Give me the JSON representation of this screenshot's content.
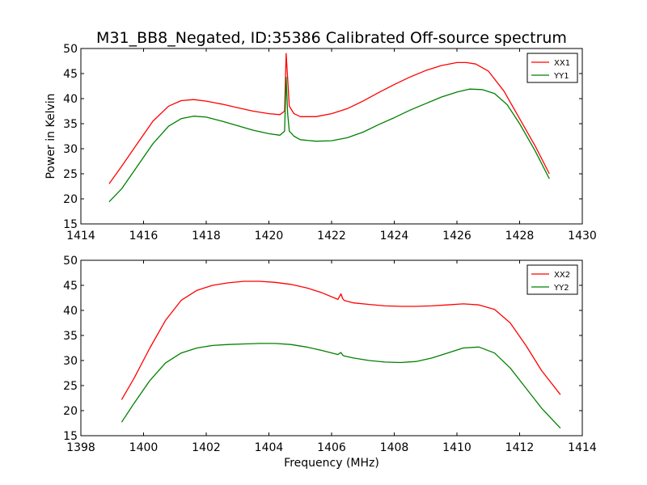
{
  "figure": {
    "title": "M31_BB8_Negated, ID:35386 Calibrated Off-source spectrum"
  },
  "chart_data": [
    {
      "type": "line",
      "title": "M31_BB8_Negated, ID:35386 Calibrated Off-source spectrum",
      "xlabel": "",
      "ylabel": "Power in Kelvin",
      "xlim": [
        1414,
        1430
      ],
      "ylim": [
        15,
        50
      ],
      "xticks": [
        1414,
        1416,
        1418,
        1420,
        1422,
        1424,
        1426,
        1428,
        1430
      ],
      "yticks": [
        15,
        20,
        25,
        30,
        35,
        40,
        45,
        50
      ],
      "legend": "top-right",
      "grid": false,
      "series": [
        {
          "name": "XX1",
          "color": "#ff0000",
          "x": [
            1414.9,
            1415.3,
            1415.8,
            1416.3,
            1416.8,
            1417.2,
            1417.6,
            1418.0,
            1418.5,
            1419.0,
            1419.5,
            1420.0,
            1420.35,
            1420.5,
            1420.55,
            1420.6,
            1420.65,
            1420.7,
            1420.8,
            1421.0,
            1421.5,
            1422.0,
            1422.5,
            1423.0,
            1423.5,
            1424.0,
            1424.5,
            1425.0,
            1425.5,
            1426.0,
            1426.3,
            1426.6,
            1427.0,
            1427.5,
            1428.0,
            1428.5,
            1428.95
          ],
          "y": [
            23.0,
            26.5,
            31.0,
            35.5,
            38.5,
            39.6,
            39.8,
            39.5,
            38.9,
            38.2,
            37.5,
            37.0,
            36.8,
            37.5,
            49.0,
            44.0,
            38.5,
            38.0,
            37.0,
            36.4,
            36.4,
            37.0,
            38.0,
            39.5,
            41.2,
            42.8,
            44.3,
            45.6,
            46.6,
            47.2,
            47.2,
            46.9,
            45.5,
            41.5,
            36.0,
            30.5,
            25.0
          ]
        },
        {
          "name": "YY1",
          "color": "#008000",
          "x": [
            1414.9,
            1415.3,
            1415.8,
            1416.3,
            1416.8,
            1417.2,
            1417.6,
            1418.0,
            1418.5,
            1419.0,
            1419.5,
            1420.0,
            1420.35,
            1420.5,
            1420.55,
            1420.6,
            1420.65,
            1420.7,
            1420.8,
            1421.0,
            1421.5,
            1422.0,
            1422.5,
            1423.0,
            1423.5,
            1424.0,
            1424.5,
            1425.0,
            1425.5,
            1426.0,
            1426.4,
            1426.8,
            1427.2,
            1427.6,
            1428.0,
            1428.5,
            1428.95
          ],
          "y": [
            19.4,
            22.0,
            26.5,
            31.0,
            34.5,
            36.0,
            36.5,
            36.3,
            35.5,
            34.6,
            33.7,
            33.0,
            32.7,
            33.5,
            44.3,
            37.0,
            33.5,
            33.2,
            32.5,
            31.8,
            31.5,
            31.6,
            32.2,
            33.3,
            34.8,
            36.2,
            37.7,
            39.0,
            40.3,
            41.3,
            41.9,
            41.8,
            41.0,
            38.8,
            35.0,
            29.5,
            24.0
          ]
        }
      ]
    },
    {
      "type": "line",
      "title": "",
      "xlabel": "Frequency (MHz)",
      "ylabel": "",
      "xlim": [
        1398,
        1414
      ],
      "ylim": [
        15,
        50
      ],
      "xticks": [
        1398,
        1400,
        1402,
        1404,
        1406,
        1408,
        1410,
        1412,
        1414
      ],
      "yticks": [
        15,
        20,
        25,
        30,
        35,
        40,
        45,
        50
      ],
      "legend": "top-right",
      "grid": false,
      "series": [
        {
          "name": "XX2",
          "color": "#ff0000",
          "x": [
            1399.3,
            1399.7,
            1400.2,
            1400.7,
            1401.2,
            1401.7,
            1402.2,
            1402.7,
            1403.2,
            1403.7,
            1404.2,
            1404.7,
            1405.2,
            1405.7,
            1406.2,
            1406.3,
            1406.35,
            1406.4,
            1406.7,
            1407.2,
            1407.7,
            1408.2,
            1408.7,
            1409.2,
            1409.7,
            1410.2,
            1410.7,
            1411.2,
            1411.7,
            1412.2,
            1412.7,
            1413.3
          ],
          "y": [
            22.2,
            26.5,
            32.5,
            38.0,
            42.0,
            44.0,
            45.0,
            45.5,
            45.8,
            45.8,
            45.6,
            45.2,
            44.5,
            43.5,
            42.2,
            43.3,
            42.4,
            42.0,
            41.5,
            41.2,
            40.9,
            40.8,
            40.8,
            40.9,
            41.1,
            41.3,
            41.1,
            40.2,
            37.5,
            33.0,
            28.0,
            23.2
          ]
        },
        {
          "name": "YY2",
          "color": "#008000",
          "x": [
            1399.3,
            1399.7,
            1400.2,
            1400.7,
            1401.2,
            1401.7,
            1402.2,
            1402.7,
            1403.2,
            1403.7,
            1404.2,
            1404.7,
            1405.2,
            1405.7,
            1406.2,
            1406.3,
            1406.35,
            1406.4,
            1406.7,
            1407.2,
            1407.7,
            1408.2,
            1408.7,
            1409.2,
            1409.7,
            1410.2,
            1410.7,
            1411.2,
            1411.7,
            1412.2,
            1412.7,
            1413.3
          ],
          "y": [
            17.7,
            21.5,
            26.0,
            29.5,
            31.5,
            32.5,
            33.0,
            33.2,
            33.3,
            33.4,
            33.4,
            33.2,
            32.7,
            32.0,
            31.2,
            31.6,
            31.1,
            30.9,
            30.5,
            30.0,
            29.7,
            29.6,
            29.8,
            30.5,
            31.5,
            32.5,
            32.7,
            31.5,
            28.5,
            24.5,
            20.5,
            16.5
          ]
        }
      ]
    }
  ]
}
